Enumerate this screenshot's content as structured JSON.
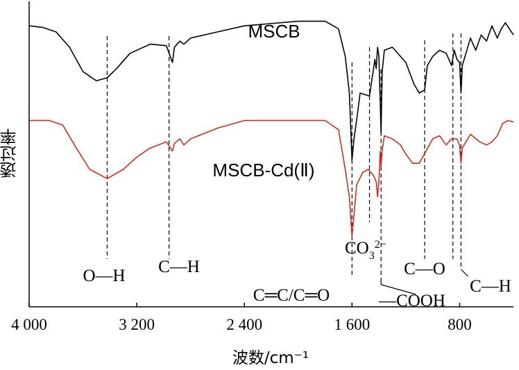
{
  "chart_data": {
    "type": "line",
    "title": "",
    "xlabel": "波数/cm⁻¹",
    "ylabel": "透过率",
    "x_reversed": true,
    "xlim": [
      4000,
      400
    ],
    "x_ticks": [
      {
        "value": 4000,
        "label": "4 000"
      },
      {
        "value": 3200,
        "label": "3 200"
      },
      {
        "value": 2400,
        "label": "2 400"
      },
      {
        "value": 1600,
        "label": "1 600"
      },
      {
        "value": 800,
        "label": "800"
      }
    ],
    "y_ticks_shown": false,
    "ylim": [
      0,
      100
    ],
    "series": [
      {
        "name": "MSCB",
        "color": "#000000",
        "points": [
          [
            4000,
            92
          ],
          [
            3900,
            91.5
          ],
          [
            3800,
            90
          ],
          [
            3700,
            85
          ],
          [
            3600,
            77
          ],
          [
            3500,
            74
          ],
          [
            3420,
            75
          ],
          [
            3350,
            78
          ],
          [
            3250,
            83
          ],
          [
            3100,
            86
          ],
          [
            2980,
            85.5
          ],
          [
            2935,
            80
          ],
          [
            2920,
            85
          ],
          [
            2880,
            87
          ],
          [
            2850,
            86
          ],
          [
            2800,
            88
          ],
          [
            2600,
            90
          ],
          [
            2400,
            92
          ],
          [
            2000,
            93.5
          ],
          [
            1800,
            93.5
          ],
          [
            1700,
            91
          ],
          [
            1650,
            82
          ],
          [
            1620,
            70
          ],
          [
            1600,
            48
          ],
          [
            1585,
            55
          ],
          [
            1560,
            63
          ],
          [
            1540,
            70
          ],
          [
            1470,
            69
          ],
          [
            1430,
            81
          ],
          [
            1420,
            78
          ],
          [
            1410,
            85
          ],
          [
            1400,
            82
          ],
          [
            1390,
            67
          ],
          [
            1384,
            57
          ],
          [
            1376,
            77
          ],
          [
            1360,
            84
          ],
          [
            1300,
            85
          ],
          [
            1200,
            80
          ],
          [
            1140,
            73
          ],
          [
            1100,
            70
          ],
          [
            1060,
            71
          ],
          [
            1040,
            79
          ],
          [
            1000,
            82
          ],
          [
            950,
            84
          ],
          [
            900,
            83
          ],
          [
            860,
            79
          ],
          [
            840,
            84
          ],
          [
            820,
            81
          ],
          [
            800,
            80
          ],
          [
            790,
            70
          ],
          [
            780,
            79
          ],
          [
            720,
            88
          ],
          [
            680,
            84
          ],
          [
            640,
            89
          ],
          [
            600,
            87
          ],
          [
            560,
            92
          ],
          [
            520,
            88
          ],
          [
            490,
            91
          ],
          [
            460,
            93
          ],
          [
            430,
            91
          ],
          [
            400,
            89
          ]
        ]
      },
      {
        "name": "MSCB-Cd(Ⅱ)",
        "color": "#d42b1e",
        "points": [
          [
            4000,
            61
          ],
          [
            3850,
            61
          ],
          [
            3750,
            59.5
          ],
          [
            3650,
            52
          ],
          [
            3550,
            45
          ],
          [
            3420,
            42
          ],
          [
            3300,
            45
          ],
          [
            3200,
            49
          ],
          [
            3100,
            52
          ],
          [
            2980,
            54
          ],
          [
            2935,
            51
          ],
          [
            2920,
            53.5
          ],
          [
            2880,
            55
          ],
          [
            2850,
            53
          ],
          [
            2800,
            55
          ],
          [
            2600,
            58.5
          ],
          [
            2400,
            61
          ],
          [
            2000,
            61
          ],
          [
            1800,
            61
          ],
          [
            1700,
            58
          ],
          [
            1650,
            45
          ],
          [
            1620,
            36
          ],
          [
            1600,
            23
          ],
          [
            1585,
            30
          ],
          [
            1565,
            40
          ],
          [
            1520,
            44
          ],
          [
            1480,
            45
          ],
          [
            1440,
            43
          ],
          [
            1420,
            41
          ],
          [
            1410,
            36
          ],
          [
            1400,
            41
          ],
          [
            1390,
            51
          ],
          [
            1384,
            46
          ],
          [
            1376,
            51
          ],
          [
            1360,
            56
          ],
          [
            1300,
            55
          ],
          [
            1240,
            53
          ],
          [
            1200,
            50
          ],
          [
            1150,
            47
          ],
          [
            1100,
            47
          ],
          [
            1050,
            51
          ],
          [
            1000,
            55
          ],
          [
            950,
            56
          ],
          [
            900,
            53
          ],
          [
            860,
            55
          ],
          [
            820,
            55
          ],
          [
            800,
            53
          ],
          [
            790,
            47
          ],
          [
            780,
            52
          ],
          [
            720,
            56.5
          ],
          [
            650,
            54
          ],
          [
            600,
            53
          ],
          [
            560,
            54
          ],
          [
            520,
            56
          ],
          [
            480,
            60
          ],
          [
            440,
            61
          ],
          [
            400,
            60.5
          ]
        ]
      }
    ],
    "annotations": [
      {
        "text": "O—H",
        "x": 3420
      },
      {
        "text": "C—H",
        "x": 2960
      },
      {
        "text": "C═C/C═O",
        "x": 1600
      },
      {
        "text": "CO",
        "sub": "3",
        "sup": "2−",
        "x": 1470
      },
      {
        "text": "—COOH",
        "x": 1384
      },
      {
        "text": "C—O",
        "x": 1060
      },
      {
        "text": "C—H",
        "x": 800
      }
    ],
    "reference_lines_x": [
      3420,
      2960,
      1600,
      1470,
      1384,
      1060,
      850,
      790
    ]
  }
}
